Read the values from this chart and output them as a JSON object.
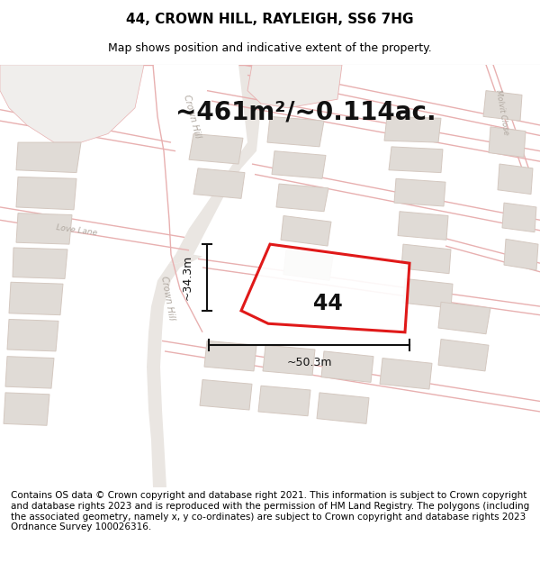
{
  "title": "44, CROWN HILL, RAYLEIGH, SS6 7HG",
  "subtitle": "Map shows position and indicative extent of the property.",
  "footer": "Contains OS data © Crown copyright and database right 2021. This information is subject to Crown copyright and database rights 2023 and is reproduced with the permission of HM Land Registry. The polygons (including the associated geometry, namely x, y co-ordinates) are subject to Crown copyright and database rights 2023 Ordnance Survey 100026316.",
  "area_label": "~461m²/~0.114ac.",
  "number_label": "44",
  "dim_horiz": "~50.3m",
  "dim_vert": "~34.3m",
  "map_bg": "#f7f5f3",
  "road_fill": "#ede9e6",
  "building_fill": "#e0dbd6",
  "building_edge": "#d4c8c0",
  "plot_line_color": "#dd0000",
  "road_line_color": "#e8b0b0",
  "dim_line_color": "#111111",
  "street_label_color": "#b0a8a0",
  "title_fontsize": 11,
  "subtitle_fontsize": 9,
  "footer_fontsize": 7.5,
  "area_fontsize": 20,
  "number_fontsize": 17
}
